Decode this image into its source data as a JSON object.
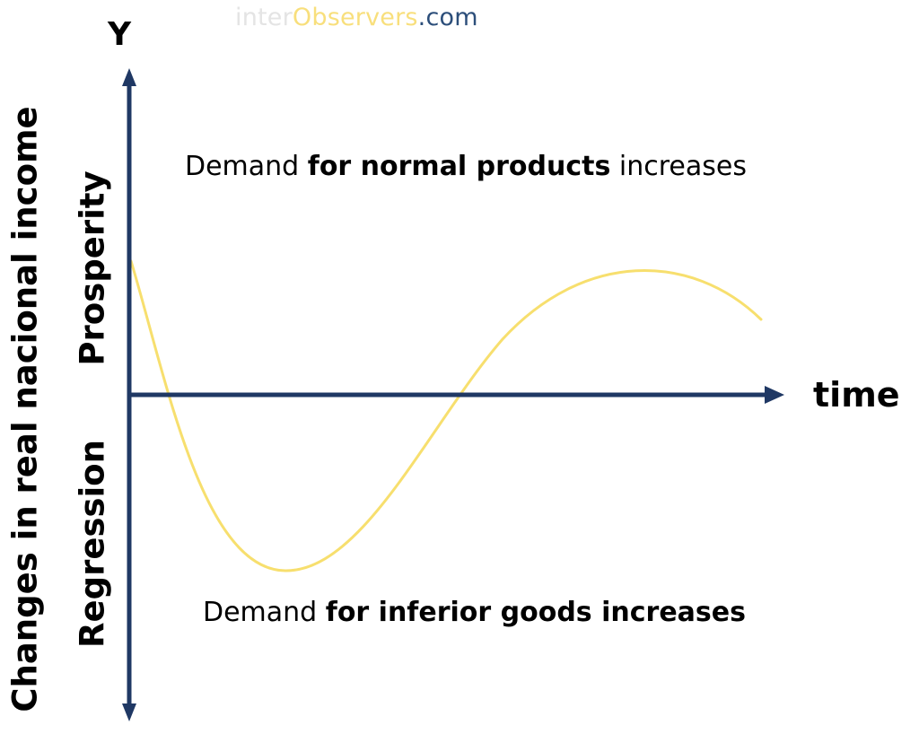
{
  "watermark": {
    "part1": "inter",
    "part2": "Observers",
    "part3": ".com"
  },
  "axes": {
    "y_letter": "Y",
    "y_label": "Changes in real nacional income",
    "x_label": "time",
    "upper_region": "Prosperity",
    "lower_region": "Regression"
  },
  "annotations": {
    "top": {
      "pre": "Demand ",
      "bold": "for normal products",
      "post": " increases"
    },
    "bottom": {
      "pre": "Demand ",
      "bold": "for inferior goods increases"
    }
  },
  "colors": {
    "axis": "#1f3864",
    "curve": "#f7df6e",
    "watermark_light": "#e4e4e4",
    "watermark_accent": "#f8df7c",
    "watermark_dark": "#2c4e7a"
  }
}
